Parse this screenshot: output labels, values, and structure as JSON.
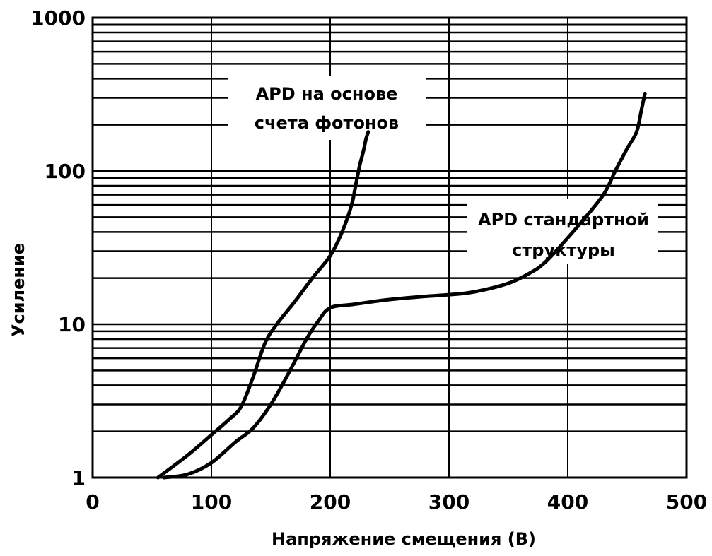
{
  "chart_data": {
    "type": "line",
    "xlabel": "Напряжение смещения (В)",
    "ylabel": "Усиление",
    "xlim": [
      0,
      500
    ],
    "ylim": [
      1,
      1000
    ],
    "yscale": "log",
    "grid": true,
    "xticks": [
      0,
      100,
      200,
      300,
      400,
      500
    ],
    "xtick_labels": [
      "0",
      "100",
      "200",
      "300",
      "400",
      "500"
    ],
    "yticks": [
      1,
      10,
      100,
      1000
    ],
    "ytick_labels": [
      "1",
      "10",
      "100",
      "1000"
    ],
    "annotations": [
      {
        "lines": [
          "APD на основе",
          "счета фотонов"
        ]
      },
      {
        "lines": [
          "APD стандартной",
          "структуры"
        ]
      }
    ],
    "series": [
      {
        "x": [
          55,
          80,
          100,
          115,
          125,
          135,
          145,
          155,
          170,
          185,
          200,
          210,
          218,
          222,
          225,
          228,
          230,
          232
        ],
        "y": [
          1.0,
          1.4,
          1.9,
          2.4,
          2.9,
          4.5,
          7.5,
          10.0,
          14.0,
          20.0,
          28.0,
          40.0,
          60.0,
          85.0,
          110.0,
          135.0,
          160.0,
          180.0
        ]
      },
      {
        "x": [
          60,
          80,
          100,
          120,
          135,
          150,
          165,
          180,
          190,
          200,
          220,
          250,
          280,
          300,
          320,
          350,
          370,
          380,
          390,
          410,
          430,
          440,
          450,
          458,
          462,
          465
        ],
        "y": [
          1.0,
          1.05,
          1.25,
          1.7,
          2.1,
          3.0,
          4.8,
          8.0,
          10.5,
          12.8,
          13.5,
          14.5,
          15.2,
          15.6,
          16.2,
          18.5,
          22.0,
          25.0,
          30.0,
          45.0,
          70.0,
          100.0,
          140.0,
          180.0,
          250.0,
          320.0
        ]
      }
    ]
  }
}
